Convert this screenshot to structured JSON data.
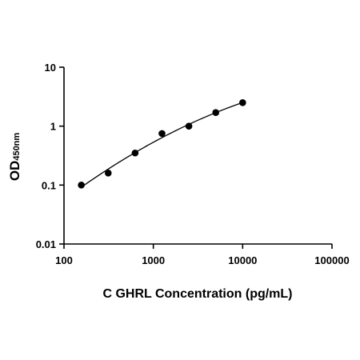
{
  "chart_data": {
    "type": "scatter",
    "title": "",
    "xlabel": "C GHRL Concentration (pg/mL)",
    "ylabel": "OD",
    "ylabel_sub": "450nm",
    "x_scale": "log",
    "y_scale": "log",
    "xlim": [
      100,
      100000
    ],
    "ylim": [
      0.01,
      10
    ],
    "x_ticks": [
      "100",
      "1000",
      "10000",
      "100000"
    ],
    "y_ticks": [
      "0.01",
      "0.1",
      "1",
      "10"
    ],
    "grid": false,
    "legend": "none",
    "series": [
      {
        "x": [
          156.25,
          312.5,
          625,
          1250,
          2500,
          5000,
          10000
        ],
        "y": [
          0.1,
          0.16,
          0.35,
          0.75,
          1.0,
          1.7,
          2.5
        ]
      }
    ],
    "fit_curve": true,
    "colors": {
      "marker": "#000000",
      "axis": "#000000",
      "curve": "#000000"
    }
  }
}
